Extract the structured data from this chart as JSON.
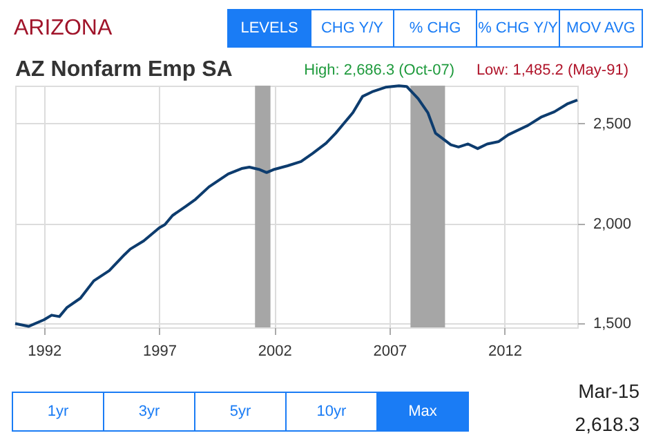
{
  "chart_data": {
    "type": "line",
    "title": "ARIZONA",
    "subtitle": "AZ Nonfarm Emp SA",
    "x": [
      "1990-10",
      "1991-05",
      "1992-01",
      "1992-05",
      "1992-09",
      "1993-01",
      "1993-08",
      "1994-03",
      "1994-11",
      "1995-07",
      "1995-10",
      "1996-05",
      "1997-01",
      "1997-04",
      "1997-08",
      "1998-03",
      "1998-08",
      "1999-03",
      "2000-01",
      "2000-08",
      "2000-12",
      "2001-05",
      "2001-09",
      "2002-01",
      "2002-08",
      "2003-03",
      "2003-09",
      "2004-04",
      "2004-09",
      "2005-01",
      "2005-06",
      "2005-11",
      "2006-04",
      "2006-11",
      "2007-06",
      "2007-10",
      "2008-04",
      "2008-09",
      "2009-01",
      "2009-09",
      "2010-01",
      "2010-06",
      "2010-11",
      "2011-04",
      "2011-10",
      "2012-03",
      "2013-01",
      "2013-08",
      "2014-03",
      "2014-10",
      "2015-03"
    ],
    "series": [
      {
        "color": "#0d3c6e",
        "values": [
          1499,
          1485,
          1518,
          1541,
          1534,
          1580,
          1626,
          1713,
          1764,
          1844,
          1872,
          1913,
          1978,
          1994,
          2040,
          2086,
          2121,
          2183,
          2248,
          2275,
          2282,
          2271,
          2255,
          2271,
          2289,
          2310,
          2351,
          2402,
          2452,
          2498,
          2555,
          2636,
          2659,
          2682,
          2689,
          2686,
          2625,
          2555,
          2452,
          2394,
          2383,
          2398,
          2375,
          2398,
          2410,
          2444,
          2490,
          2532,
          2559,
          2600,
          2618
        ]
      }
    ],
    "xlim": [
      "1990-10",
      "2015-03"
    ],
    "xticks": [
      "1992",
      "1997",
      "2002",
      "2007",
      "2012"
    ],
    "ylim": [
      1480,
      2690
    ],
    "yticks": [
      {
        "value": 1500,
        "label": "1,500"
      },
      {
        "value": 2000,
        "label": "2,000"
      },
      {
        "value": 2500,
        "label": "2,500"
      }
    ],
    "bands": [
      {
        "axis": "x",
        "from": "2001-03",
        "to": "2001-11",
        "color": "#a6a6a6"
      },
      {
        "axis": "x",
        "from": "2007-12",
        "to": "2009-06",
        "color": "#a6a6a6"
      }
    ],
    "grid": true,
    "annotations": [
      "LEVELS",
      "CHG Y/Y",
      "% CHG",
      "% CHG Y/Y",
      "MOV AVG",
      "1yr",
      "3yr",
      "5yr",
      "10yr",
      "Max",
      "High: 2,686.3 (Oct-07)",
      "Low: 1,485.2 (May-91)",
      "Mar-15",
      "2,618.3"
    ]
  }
}
